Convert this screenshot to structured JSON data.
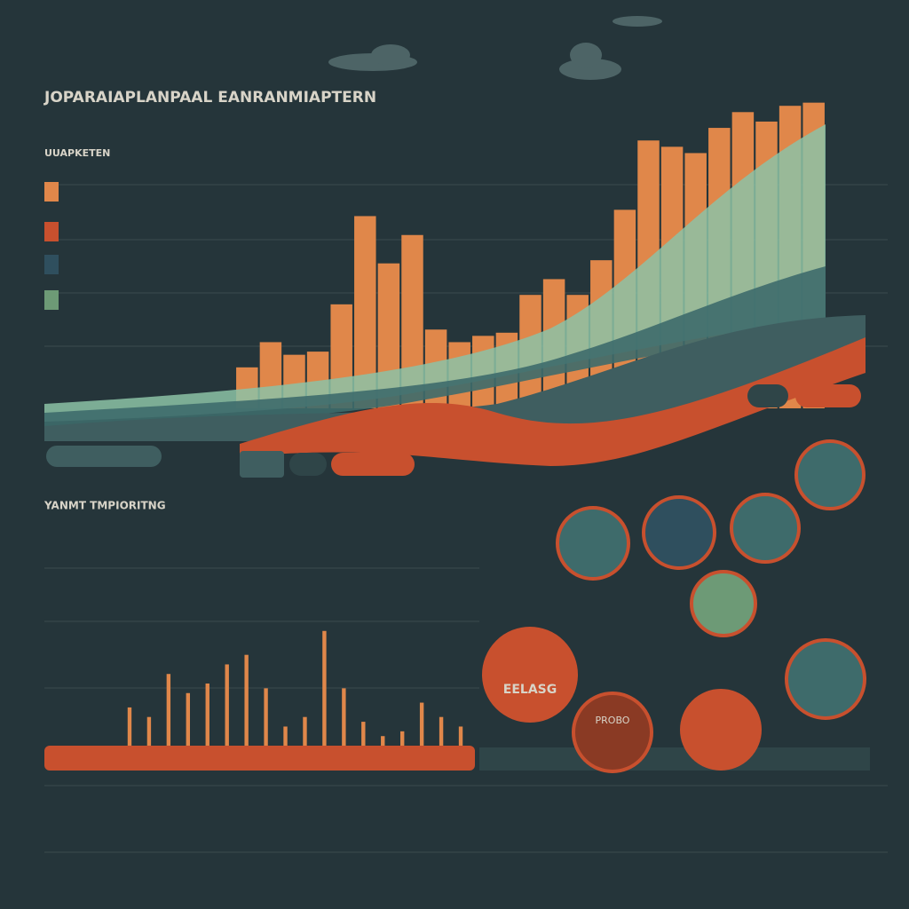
{
  "header": {
    "title": "JOPARAIAPLANPAAL EANRANMIAPTERN",
    "subtitle": "UUAPKETEN"
  },
  "section2": {
    "title": "YANMT TMPIORITNG"
  },
  "badges": [
    "EELASG",
    "PROBO"
  ],
  "chart_data": [
    {
      "type": "bar",
      "color": "#e0874a",
      "categories": [
        null,
        null,
        null,
        null,
        null,
        null,
        null,
        null,
        null,
        null,
        null,
        null,
        null,
        null,
        null,
        null,
        null,
        null,
        null,
        null,
        null,
        null,
        null,
        null,
        null
      ],
      "values": [
        13,
        21,
        17,
        18,
        33,
        61,
        46,
        55,
        25,
        21,
        23,
        24,
        36,
        41,
        36,
        47,
        63,
        85,
        83,
        81,
        89,
        94,
        91,
        96,
        97
      ],
      "ylim": [
        0,
        100
      ]
    },
    {
      "type": "bar",
      "color": "#e0874a",
      "categories": [
        null,
        null,
        null,
        null,
        null,
        null,
        null,
        null,
        null,
        null,
        null,
        null,
        null,
        null,
        null,
        null,
        null,
        null
      ],
      "values": [
        40,
        30,
        75,
        55,
        65,
        85,
        95,
        60,
        20,
        30,
        120,
        60,
        25,
        10,
        15,
        45,
        30,
        20
      ],
      "ylim": [
        0,
        130
      ]
    }
  ]
}
